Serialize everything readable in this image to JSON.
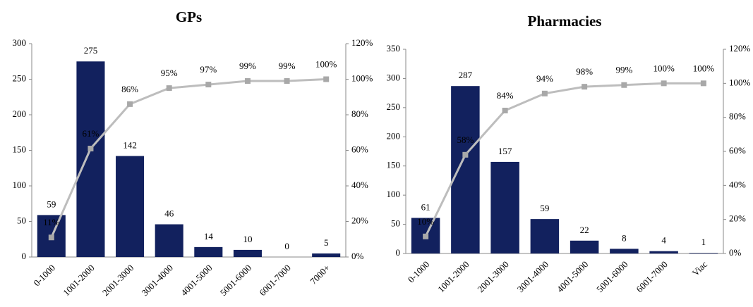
{
  "chart_data": [
    {
      "type": "bar",
      "title": "GPs",
      "categories": [
        "0-1000",
        "1001-2000",
        "2001-3000",
        "3001-4000",
        "4001-5000",
        "5001-6000",
        "6001-7000",
        "7000+"
      ],
      "series": [
        {
          "color": "#12215e",
          "values": [
            59,
            275,
            142,
            46,
            14,
            10,
            0,
            5
          ]
        },
        {
          "type": "line",
          "axis": "y2",
          "color": "#bdbdbd",
          "values": [
            11,
            61,
            86,
            95,
            97,
            99,
            99,
            100
          ],
          "value_labels": [
            "11%",
            "61%",
            "86%",
            "95%",
            "97%",
            "99%",
            "99%",
            "100%"
          ]
        }
      ],
      "ylim": [
        0,
        300
      ],
      "yticks": [
        0,
        50,
        100,
        150,
        200,
        250,
        300
      ],
      "y2lim": [
        0,
        120
      ],
      "y2ticks": [
        {
          "value": 0,
          "label": "0%"
        },
        {
          "value": 20,
          "label": "20%"
        },
        {
          "value": 40,
          "label": "40%"
        },
        {
          "value": 60,
          "label": "60%"
        },
        {
          "value": 80,
          "label": "80%"
        },
        {
          "value": 100,
          "label": "100%"
        },
        {
          "value": 120,
          "label": "120%"
        }
      ]
    },
    {
      "type": "bar",
      "title": "Pharmacies",
      "categories": [
        "0-1000",
        "1001-2000",
        "2001-3000",
        "3001-4000",
        "4001-5000",
        "5001-6000",
        "6001-7000",
        "Viac"
      ],
      "series": [
        {
          "color": "#12215e",
          "values": [
            61,
            287,
            157,
            59,
            22,
            8,
            4,
            1
          ]
        },
        {
          "type": "line",
          "axis": "y2",
          "color": "#bdbdbd",
          "values": [
            10,
            58,
            84,
            94,
            98,
            99,
            100,
            100
          ],
          "value_labels": [
            "10%",
            "58%",
            "84%",
            "94%",
            "98%",
            "99%",
            "100%",
            "100%"
          ]
        }
      ],
      "ylim": [
        0,
        350
      ],
      "yticks": [
        0,
        50,
        100,
        150,
        200,
        250,
        300,
        350
      ],
      "y2lim": [
        0,
        120
      ],
      "y2ticks": [
        {
          "value": 0,
          "label": "0%"
        },
        {
          "value": 20,
          "label": "20%"
        },
        {
          "value": 40,
          "label": "40%"
        },
        {
          "value": 60,
          "label": "60%"
        },
        {
          "value": 80,
          "label": "80%"
        },
        {
          "value": 100,
          "label": "100%"
        },
        {
          "value": 120,
          "label": "120%"
        }
      ]
    }
  ]
}
